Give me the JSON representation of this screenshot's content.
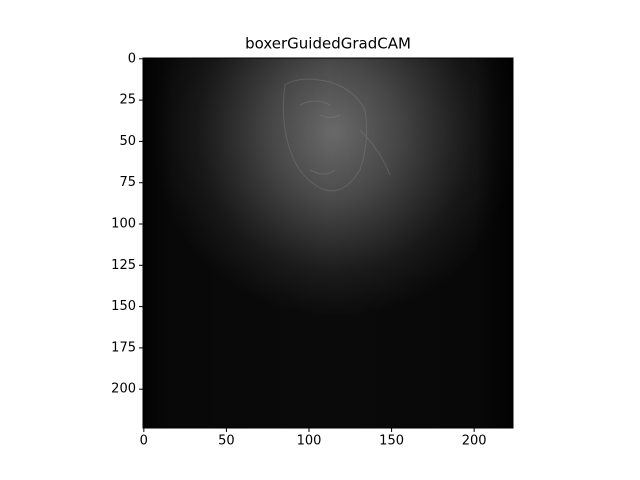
{
  "chart_data": {
    "type": "image",
    "title": "boxerGuidedGradCAM",
    "xlim": [
      -0.5,
      223.5
    ],
    "ylim": [
      223.5,
      -0.5
    ],
    "xticks": [
      0,
      50,
      100,
      150,
      200
    ],
    "yticks": [
      0,
      25,
      50,
      75,
      100,
      125,
      150,
      175,
      200
    ]
  }
}
